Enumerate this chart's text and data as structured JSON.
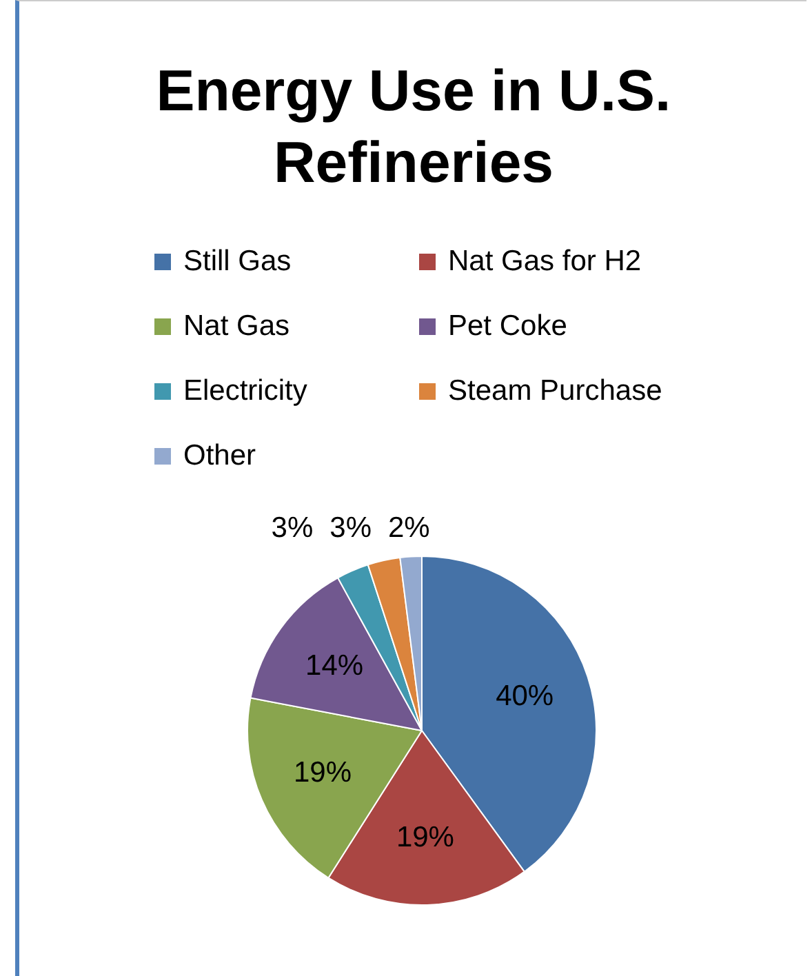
{
  "chart_data": {
    "type": "pie",
    "title": "Energy Use in U.S. Refineries",
    "categories": [
      "Still Gas",
      "Nat Gas for H2",
      "Nat Gas",
      "Pet Coke",
      "Electricity",
      "Steam Purchase",
      "Other"
    ],
    "values": [
      40,
      19,
      19,
      14,
      3,
      3,
      2
    ],
    "colors": [
      "#4572a7",
      "#aa4643",
      "#89a54e",
      "#71588f",
      "#4198af",
      "#db843d",
      "#93a9cf"
    ],
    "value_labels": [
      "40%",
      "19%",
      "19%",
      "14%",
      "3%",
      "3%",
      "2%"
    ],
    "legend": "top"
  }
}
